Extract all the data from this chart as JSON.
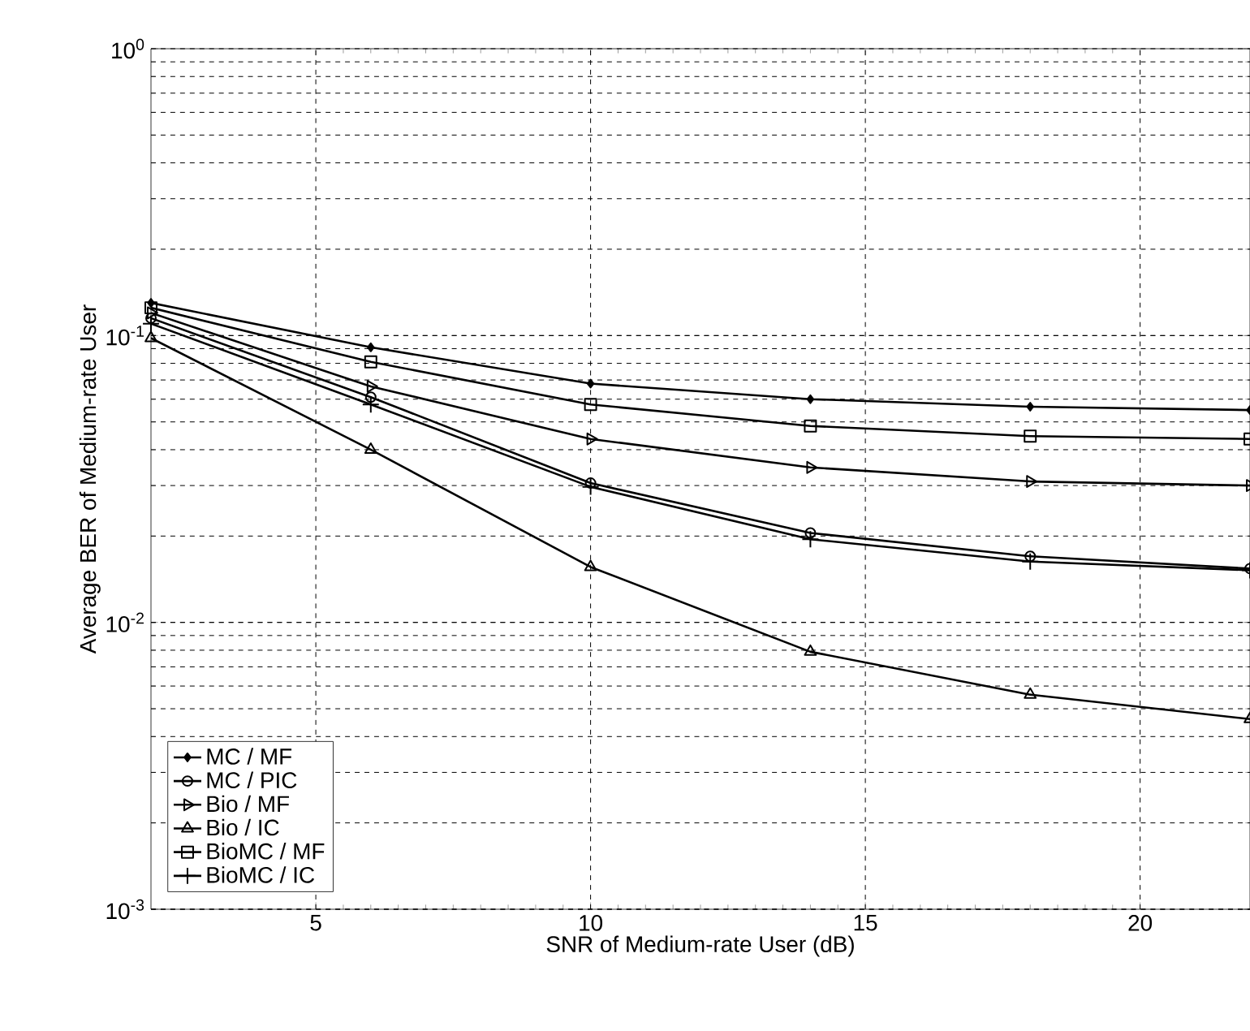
{
  "chart_data": {
    "type": "line",
    "xlabel": "SNR of Medium-rate User (dB)",
    "ylabel": "Average BER of Medium-rate User",
    "x": [
      2,
      6,
      10,
      14,
      18,
      22
    ],
    "xlim": [
      2,
      22
    ],
    "xticks": [
      5,
      10,
      15,
      20
    ],
    "ylim": [
      0.001,
      1
    ],
    "yticks": [
      {
        "value": 0.001,
        "label": "10$^{-3}$"
      },
      {
        "value": 0.01,
        "label": "10$^{-2}$"
      },
      {
        "value": 0.1,
        "label": "10$^{-1}$"
      },
      {
        "value": 1,
        "label": "10$^{0}$"
      }
    ],
    "log": "y",
    "grid": true,
    "legend": "bottom left",
    "line_style": "solid",
    "series": [
      {
        "name": "MC / MF",
        "color": "#000000",
        "marker": "diamond",
        "values": [
          0.13,
          0.091,
          0.068,
          0.06,
          0.0565,
          0.055
        ]
      },
      {
        "name": "MC / PIC",
        "color": "#000000",
        "marker": "circle",
        "values": [
          0.115,
          0.061,
          0.0306,
          0.0205,
          0.017,
          0.0154
        ]
      },
      {
        "name": "Bio / MF",
        "color": "#000000",
        "marker": "triangle-right",
        "values": [
          0.12,
          0.0665,
          0.0436,
          0.0347,
          0.031,
          0.03
        ]
      },
      {
        "name": "Bio / IC",
        "color": "#000000",
        "marker": "triangle",
        "values": [
          0.098,
          0.04,
          0.0156,
          0.0079,
          0.0056,
          0.0046
        ]
      },
      {
        "name": "BioMC / MF",
        "color": "#000000",
        "marker": "square",
        "values": [
          0.125,
          0.081,
          0.0575,
          0.0484,
          0.0446,
          0.0436
        ]
      },
      {
        "name": "BioMC / IC",
        "color": "#000000",
        "marker": "cross",
        "values": [
          0.11,
          0.0575,
          0.0297,
          0.0195,
          0.0163,
          0.0152
        ]
      }
    ]
  }
}
